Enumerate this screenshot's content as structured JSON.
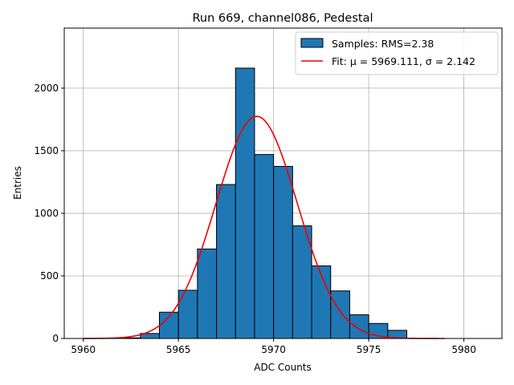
{
  "chart_data": {
    "type": "bar",
    "title": "Run 669, channel086, Pedestal",
    "xlabel": "ADC Counts",
    "ylabel": "Entries",
    "xlim": [
      5959,
      5982
    ],
    "ylim": [
      0,
      2480
    ],
    "xticks": [
      5960,
      5965,
      5970,
      5975,
      5980
    ],
    "yticks": [
      0,
      500,
      1000,
      1500,
      2000
    ],
    "grid": true,
    "legend_position": "top-right",
    "bin_width": 1,
    "bins": [
      {
        "x": 5962,
        "value": 5
      },
      {
        "x": 5963,
        "value": 40
      },
      {
        "x": 5964,
        "value": 210
      },
      {
        "x": 5965,
        "value": 385
      },
      {
        "x": 5966,
        "value": 715
      },
      {
        "x": 5967,
        "value": 1230
      },
      {
        "x": 5968,
        "value": 2160
      },
      {
        "x": 5969,
        "value": 1470
      },
      {
        "x": 5970,
        "value": 1375
      },
      {
        "x": 5971,
        "value": 900
      },
      {
        "x": 5972,
        "value": 580
      },
      {
        "x": 5973,
        "value": 380
      },
      {
        "x": 5974,
        "value": 190
      },
      {
        "x": 5975,
        "value": 120
      },
      {
        "x": 5976,
        "value": 65
      }
    ],
    "fit": {
      "type": "gaussian",
      "mu": 5969.111,
      "sigma": 2.142,
      "peak": 1775,
      "x_range": [
        5960,
        5979
      ]
    },
    "series": [
      {
        "name": "Samples: RMS=2.38",
        "color": "#1f77b4"
      },
      {
        "name": "Fit: μ = 5969.111, σ = 2.142",
        "color": "#ee0000"
      }
    ]
  }
}
